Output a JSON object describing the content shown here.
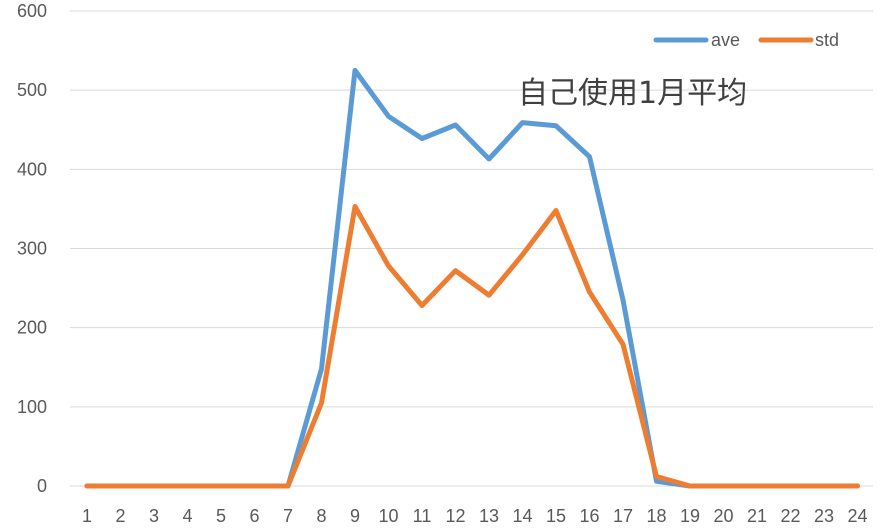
{
  "chart_data": {
    "type": "line",
    "title": "",
    "xlabel": "",
    "ylabel": "",
    "annotation": "自己使用1月平均",
    "categories": [
      "1",
      "2",
      "3",
      "4",
      "5",
      "6",
      "7",
      "8",
      "9",
      "10",
      "11",
      "12",
      "13",
      "14",
      "15",
      "16",
      "17",
      "18",
      "19",
      "20",
      "21",
      "22",
      "23",
      "24"
    ],
    "ylim": [
      0,
      600
    ],
    "yticks": [
      0,
      100,
      200,
      300,
      400,
      500,
      600
    ],
    "grid": true,
    "legend_position": "top-right",
    "series": [
      {
        "name": "ave",
        "color": "#5b9bd5",
        "values": [
          0,
          0,
          0,
          0,
          0,
          0,
          0,
          148,
          525,
          467,
          439,
          456,
          413,
          459,
          455,
          416,
          235,
          6,
          0,
          0,
          0,
          0,
          0,
          0
        ]
      },
      {
        "name": "std",
        "color": "#ed7d31",
        "values": [
          0,
          0,
          0,
          0,
          0,
          0,
          0,
          105,
          353,
          278,
          228,
          272,
          241,
          292,
          348,
          245,
          179,
          12,
          0,
          0,
          0,
          0,
          0,
          0
        ]
      }
    ]
  }
}
